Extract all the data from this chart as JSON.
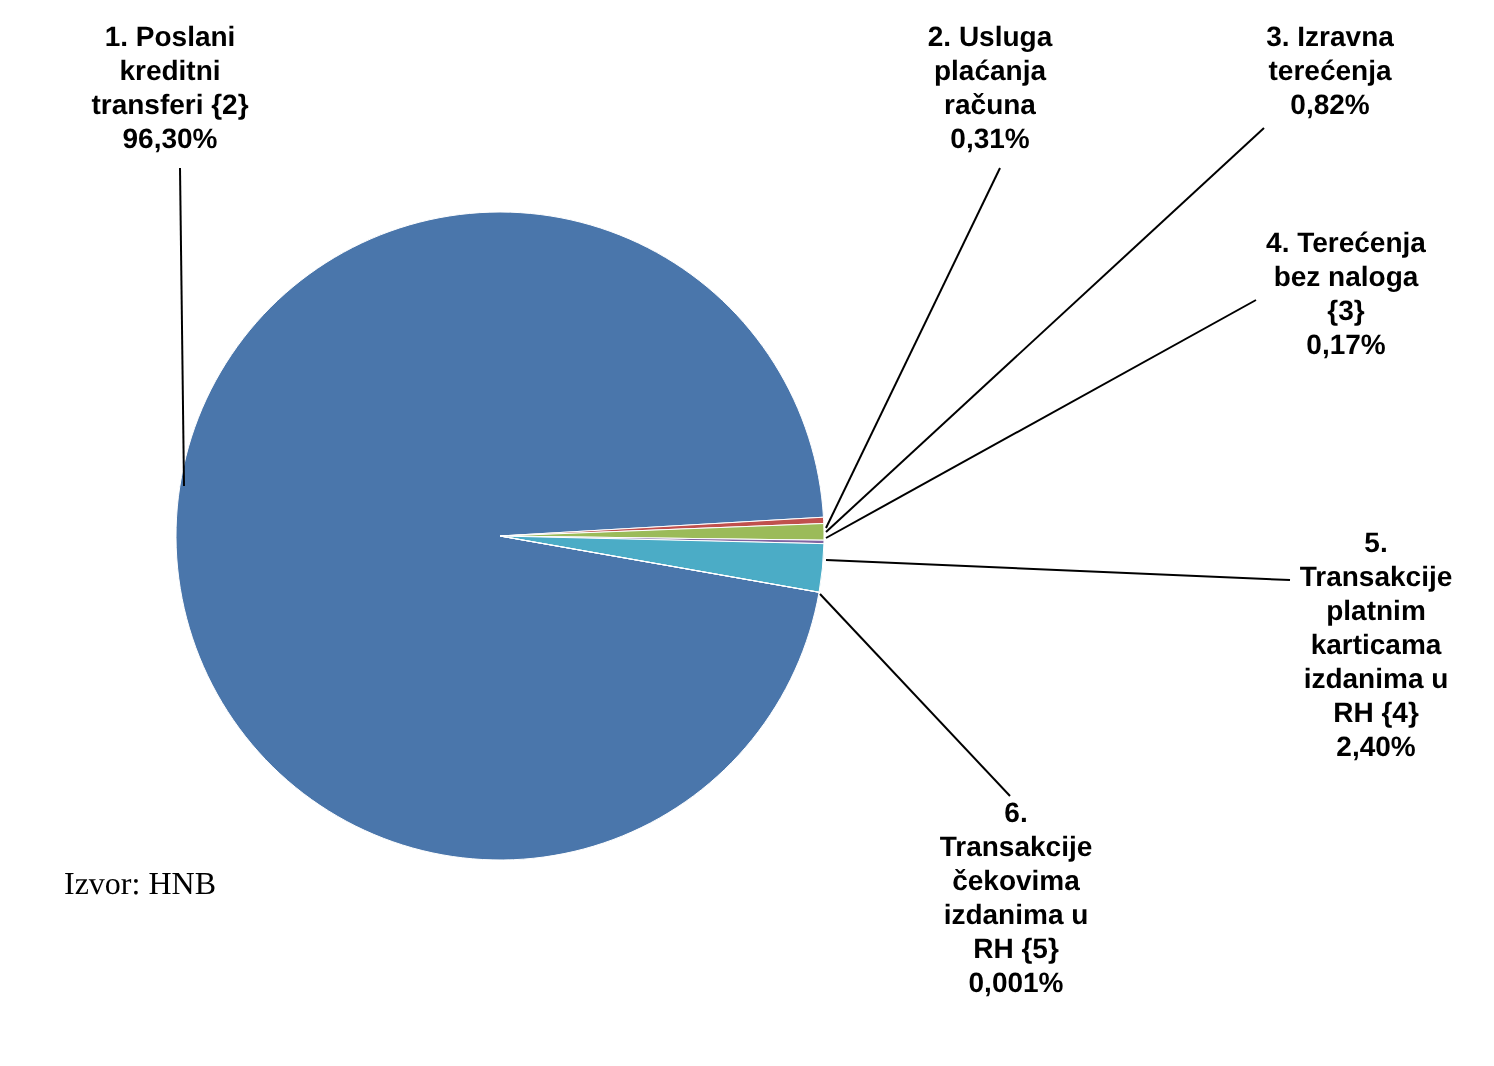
{
  "chart_data": {
    "type": "pie",
    "categories": [
      "1. Poslani kreditni transferi {2}",
      "2. Usluga plaćanja računa",
      "3. Izravna terećenja",
      "4. Terećenja bez naloga {3}",
      "5. Transakcije platnim karticama izdanima u RH {4}",
      "6. Transakcije čekovima izdanima u RH {5}"
    ],
    "values": [
      96.3,
      0.31,
      0.82,
      0.17,
      2.4,
      0.001
    ],
    "value_labels": [
      "96,30%",
      "0,31%",
      "0,82%",
      "0,17%",
      "2,40%",
      "0,001%"
    ],
    "colors": [
      "#4a76ab",
      "#c0504d",
      "#9bbb59",
      "#8064a2",
      "#4bacc6",
      "#f79646"
    ],
    "annotations": [
      "Izvor: HNB"
    ]
  }
}
